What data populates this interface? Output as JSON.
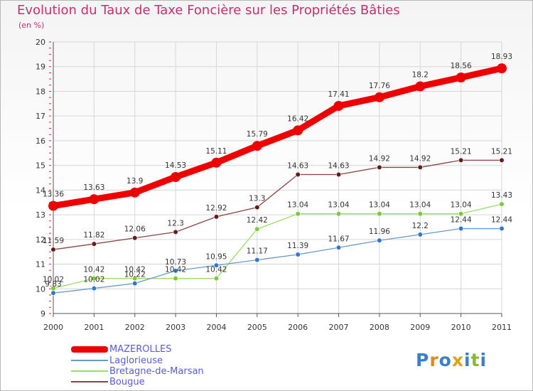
{
  "title": "Evolution du Taux de Taxe Foncière sur les Propriétés Bâties",
  "subtitle": "(en %)",
  "logo": {
    "text": "Proxiti",
    "letters": [
      "P",
      "r",
      "o",
      "x",
      "i",
      "t",
      "i"
    ],
    "colors": [
      "#3a7fc9",
      "#e08a1e",
      "#3a7fc9",
      "#e0a018",
      "#3a7fc9",
      "#8bb832",
      "#3a7fc9"
    ]
  },
  "chart_data": {
    "type": "line",
    "x": [
      "2000",
      "2001",
      "2002",
      "2003",
      "2004",
      "2005",
      "2006",
      "2007",
      "2008",
      "2009",
      "2010",
      "2011"
    ],
    "ylim": [
      9,
      20
    ],
    "yticks": [
      "9",
      "10",
      "11",
      "12",
      "13",
      "14",
      "15",
      "16",
      "17",
      "18",
      "19",
      "20"
    ],
    "grid": true,
    "legend_position": "bottom-left",
    "series": [
      {
        "name": "MAZEROLLES",
        "color": "#ee0000",
        "highlight": true,
        "values": [
          13.36,
          13.63,
          13.9,
          14.53,
          15.11,
          15.79,
          16.42,
          17.41,
          17.76,
          18.2,
          18.56,
          18.93
        ],
        "labels": [
          "13.36",
          "13.63",
          "13.9",
          "14.53",
          "15.11",
          "15.79",
          "16.42",
          "17.41",
          "17.76",
          "18.2",
          "18.56",
          "18.93"
        ]
      },
      {
        "name": "Laglorieuse",
        "color": "#6699cc",
        "marker": "#3377cc",
        "values": [
          9.83,
          10.02,
          10.22,
          10.73,
          10.95,
          11.17,
          11.39,
          11.67,
          11.96,
          12.2,
          12.44,
          12.44
        ],
        "labels": [
          "9.83",
          "10.02",
          "10.22",
          "10.73",
          "10.95",
          "11.17",
          "11.39",
          "11.67",
          "11.96",
          "12.2",
          "12.44",
          "12.44"
        ]
      },
      {
        "name": "Bretagne-de-Marsan",
        "color": "#99dd66",
        "marker": "#77cc33",
        "values": [
          10.02,
          10.42,
          10.42,
          10.42,
          10.42,
          12.42,
          13.04,
          13.04,
          13.04,
          13.04,
          13.04,
          13.43
        ],
        "labels": [
          "10.02",
          "10.42",
          "10.42",
          "10.42",
          "10.42",
          "12.42",
          "13.04",
          "13.04",
          "13.04",
          "13.04",
          "13.04",
          "13.43"
        ]
      },
      {
        "name": "Bougue",
        "color": "#884444",
        "marker": "#661a1a",
        "values": [
          11.59,
          11.82,
          12.06,
          12.3,
          12.92,
          13.3,
          14.63,
          14.63,
          14.92,
          14.92,
          15.21,
          15.21
        ],
        "labels": [
          "11.59",
          "11.82",
          "12.06",
          "12.3",
          "12.92",
          "13.3",
          "14.63",
          "14.63",
          "14.92",
          "14.92",
          "15.21",
          "15.21"
        ]
      }
    ]
  }
}
